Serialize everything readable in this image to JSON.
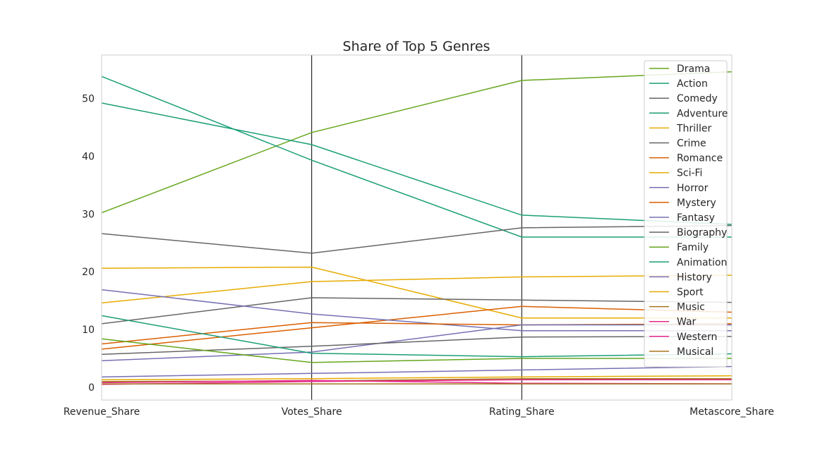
{
  "chart_data": {
    "type": "line",
    "subtype": "parallel-coordinates",
    "title": "Share of Top 5 Genres",
    "xlabel": "",
    "ylabel": "",
    "categories": [
      "Revenue_Share",
      "Votes_Share",
      "Rating_Share",
      "Metascore_Share"
    ],
    "ylim": [
      -2.2,
      57.5
    ],
    "yticks": [
      0,
      10,
      20,
      30,
      40,
      50
    ],
    "grid": "vertical lines at each axis",
    "legend_position": "top-right",
    "series": [
      {
        "name": "Drama",
        "color": "#66a61e",
        "values": [
          30.2,
          44.1,
          53.1,
          54.6
        ]
      },
      {
        "name": "Action",
        "color": "#1b9e77",
        "values": [
          53.8,
          39.3,
          26.0,
          26.0
        ]
      },
      {
        "name": "Comedy",
        "color": "#666666",
        "values": [
          26.6,
          23.2,
          27.6,
          28.0
        ]
      },
      {
        "name": "Adventure",
        "color": "#1b9e77",
        "values": [
          49.2,
          42.0,
          29.8,
          28.2
        ]
      },
      {
        "name": "Thriller",
        "color": "#e6ab02",
        "values": [
          20.6,
          20.8,
          12.0,
          12.0
        ]
      },
      {
        "name": "Crime",
        "color": "#666666",
        "values": [
          11.0,
          15.5,
          15.1,
          14.7
        ]
      },
      {
        "name": "Romance",
        "color": "#d95f02",
        "values": [
          6.6,
          10.3,
          14.0,
          13.0
        ]
      },
      {
        "name": "Sci-Fi",
        "color": "#e6ab02",
        "values": [
          14.6,
          18.3,
          19.1,
          19.4
        ]
      },
      {
        "name": "Horror",
        "color": "#7570b3",
        "values": [
          16.9,
          12.7,
          9.8,
          9.8
        ]
      },
      {
        "name": "Mystery",
        "color": "#d95f02",
        "values": [
          7.5,
          11.2,
          10.8,
          11.0
        ]
      },
      {
        "name": "Fantasy",
        "color": "#7570b3",
        "values": [
          4.6,
          6.1,
          10.8,
          10.8
        ]
      },
      {
        "name": "Biography",
        "color": "#666666",
        "values": [
          5.7,
          7.1,
          8.7,
          8.8
        ]
      },
      {
        "name": "Family",
        "color": "#66a61e",
        "values": [
          8.4,
          4.3,
          5.0,
          5.0
        ]
      },
      {
        "name": "Animation",
        "color": "#1b9e77",
        "values": [
          12.4,
          5.9,
          5.3,
          5.8
        ]
      },
      {
        "name": "History",
        "color": "#7570b3",
        "values": [
          1.8,
          2.4,
          3.0,
          3.6
        ]
      },
      {
        "name": "Sport",
        "color": "#e6ab02",
        "values": [
          1.3,
          1.5,
          1.8,
          2.0
        ]
      },
      {
        "name": "Music",
        "color": "#a6761d",
        "values": [
          1.0,
          1.1,
          1.5,
          1.5
        ]
      },
      {
        "name": "War",
        "color": "#e7298a",
        "values": [
          0.5,
          1.0,
          1.3,
          1.3
        ]
      },
      {
        "name": "Western",
        "color": "#e7298a",
        "values": [
          0.8,
          1.2,
          0.7,
          0.6
        ]
      },
      {
        "name": "Musical",
        "color": "#a6761d",
        "values": [
          0.6,
          0.6,
          0.6,
          0.6
        ]
      }
    ]
  }
}
